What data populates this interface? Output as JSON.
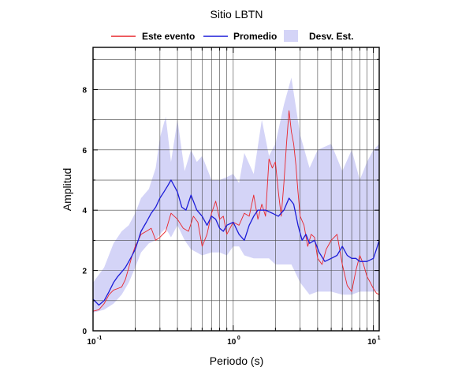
{
  "chart_data": {
    "type": "line",
    "title": "Sitio LBTN",
    "xlabel": "Periodo (s)",
    "ylabel": "Amplitud",
    "xscale": "log",
    "xlim": [
      0.1,
      11
    ],
    "ylim": [
      0,
      9.4
    ],
    "yticks": [
      0,
      2,
      4,
      6,
      8
    ],
    "xtick_labels": [
      {
        "value": 0.1,
        "base": "10",
        "exp": "-1"
      },
      {
        "value": 1,
        "base": "10",
        "exp": "0"
      },
      {
        "value": 10,
        "base": "10",
        "exp": "1"
      }
    ],
    "grid": true,
    "legend": {
      "position": "top",
      "entries": [
        {
          "label": "Este evento",
          "kind": "line",
          "color": "#e8262c"
        },
        {
          "label": "Promedio",
          "kind": "line",
          "color": "#1c1cd8"
        },
        {
          "label": "Desv. Est.",
          "kind": "band",
          "color": "#d4d4f7"
        }
      ]
    },
    "band": {
      "name": "Desv. Est.",
      "color": "#d4d4f7",
      "x": [
        0.1,
        0.12,
        0.14,
        0.16,
        0.18,
        0.2,
        0.22,
        0.25,
        0.28,
        0.3,
        0.33,
        0.36,
        0.4,
        0.45,
        0.5,
        0.55,
        0.6,
        0.7,
        0.8,
        0.9,
        1.0,
        1.1,
        1.2,
        1.4,
        1.6,
        1.8,
        2.0,
        2.3,
        2.6,
        3.0,
        3.5,
        4.0,
        5.0,
        6.0,
        7.0,
        8.0,
        9.0,
        10.0,
        11.0
      ],
      "upper": [
        1.6,
        2.1,
        2.9,
        3.3,
        3.5,
        3.9,
        4.4,
        4.7,
        5.4,
        6.4,
        7.1,
        5.6,
        7.0,
        5.3,
        6.0,
        5.6,
        5.8,
        5.0,
        5.0,
        5.1,
        5.2,
        4.9,
        5.9,
        5.2,
        7.0,
        5.8,
        6.2,
        7.5,
        8.4,
        6.5,
        5.4,
        6.0,
        6.2,
        5.3,
        6.0,
        5.0,
        5.6,
        6.0,
        6.2
      ],
      "lower": [
        0.6,
        0.7,
        0.9,
        1.2,
        1.6,
        2.1,
        2.6,
        2.9,
        3.0,
        3.2,
        3.4,
        3.1,
        3.5,
        3.0,
        2.7,
        2.6,
        2.5,
        2.6,
        2.6,
        2.5,
        2.8,
        2.8,
        2.5,
        2.4,
        2.4,
        2.4,
        2.2,
        2.2,
        2.2,
        1.6,
        1.2,
        1.3,
        1.3,
        1.2,
        1.2,
        1.3,
        1.3,
        1.3,
        1.3
      ]
    },
    "series": [
      {
        "name": "Este evento",
        "color": "#e8262c",
        "x": [
          0.1,
          0.11,
          0.12,
          0.13,
          0.14,
          0.15,
          0.16,
          0.17,
          0.18,
          0.19,
          0.2,
          0.21,
          0.22,
          0.24,
          0.26,
          0.28,
          0.3,
          0.33,
          0.36,
          0.4,
          0.44,
          0.48,
          0.52,
          0.56,
          0.6,
          0.65,
          0.7,
          0.75,
          0.8,
          0.85,
          0.9,
          1.0,
          1.1,
          1.2,
          1.3,
          1.4,
          1.5,
          1.6,
          1.7,
          1.8,
          1.9,
          2.0,
          2.1,
          2.2,
          2.3,
          2.4,
          2.5,
          2.6,
          2.7,
          2.8,
          2.9,
          3.0,
          3.2,
          3.4,
          3.6,
          3.8,
          4.0,
          4.3,
          4.6,
          5.0,
          5.5,
          6.0,
          6.5,
          7.0,
          7.5,
          8.0,
          8.5,
          9.0,
          9.5,
          10.0,
          10.5,
          11.0
        ],
        "values": [
          0.65,
          0.7,
          0.9,
          1.2,
          1.35,
          1.4,
          1.45,
          1.7,
          2.1,
          2.5,
          2.8,
          3.0,
          3.2,
          3.3,
          3.4,
          3.0,
          3.1,
          3.3,
          3.9,
          3.7,
          3.4,
          3.3,
          3.8,
          3.6,
          2.8,
          3.2,
          3.9,
          4.3,
          3.7,
          3.8,
          3.2,
          3.6,
          3.5,
          3.9,
          3.8,
          4.5,
          3.7,
          4.2,
          3.8,
          5.7,
          5.4,
          5.6,
          4.6,
          3.8,
          4.9,
          6.2,
          7.3,
          6.6,
          6.2,
          5.5,
          4.6,
          3.8,
          3.5,
          2.8,
          3.2,
          3.1,
          2.4,
          2.2,
          2.7,
          3.0,
          3.2,
          2.2,
          1.5,
          1.3,
          2.0,
          2.5,
          2.2,
          1.8,
          1.6,
          1.4,
          1.25,
          1.2
        ]
      },
      {
        "name": "Promedio",
        "color": "#1c1cd8",
        "x": [
          0.1,
          0.11,
          0.12,
          0.13,
          0.14,
          0.15,
          0.16,
          0.17,
          0.18,
          0.19,
          0.2,
          0.21,
          0.22,
          0.24,
          0.26,
          0.28,
          0.3,
          0.32,
          0.34,
          0.36,
          0.38,
          0.4,
          0.43,
          0.46,
          0.5,
          0.55,
          0.6,
          0.65,
          0.7,
          0.75,
          0.8,
          0.85,
          0.9,
          1.0,
          1.1,
          1.2,
          1.3,
          1.4,
          1.5,
          1.7,
          1.9,
          2.1,
          2.3,
          2.5,
          2.7,
          2.9,
          3.1,
          3.3,
          3.5,
          3.8,
          4.1,
          4.5,
          5.0,
          5.5,
          6.0,
          6.5,
          7.0,
          7.5,
          8.0,
          9.0,
          10.0,
          10.5,
          11.0
        ],
        "values": [
          1.05,
          0.85,
          1.0,
          1.3,
          1.6,
          1.8,
          1.95,
          2.1,
          2.3,
          2.5,
          2.7,
          3.0,
          3.3,
          3.6,
          3.9,
          4.1,
          4.4,
          4.6,
          4.8,
          5.0,
          4.8,
          4.6,
          4.1,
          4.0,
          4.5,
          4.0,
          3.8,
          3.5,
          3.8,
          3.7,
          3.4,
          3.3,
          3.5,
          3.6,
          3.2,
          3.0,
          3.5,
          3.8,
          4.0,
          4.0,
          3.9,
          3.8,
          4.0,
          4.4,
          4.2,
          3.5,
          3.0,
          3.2,
          2.9,
          3.0,
          2.6,
          2.3,
          2.4,
          2.5,
          2.8,
          2.5,
          2.4,
          2.4,
          2.3,
          2.3,
          2.4,
          2.7,
          3.0
        ]
      }
    ]
  }
}
